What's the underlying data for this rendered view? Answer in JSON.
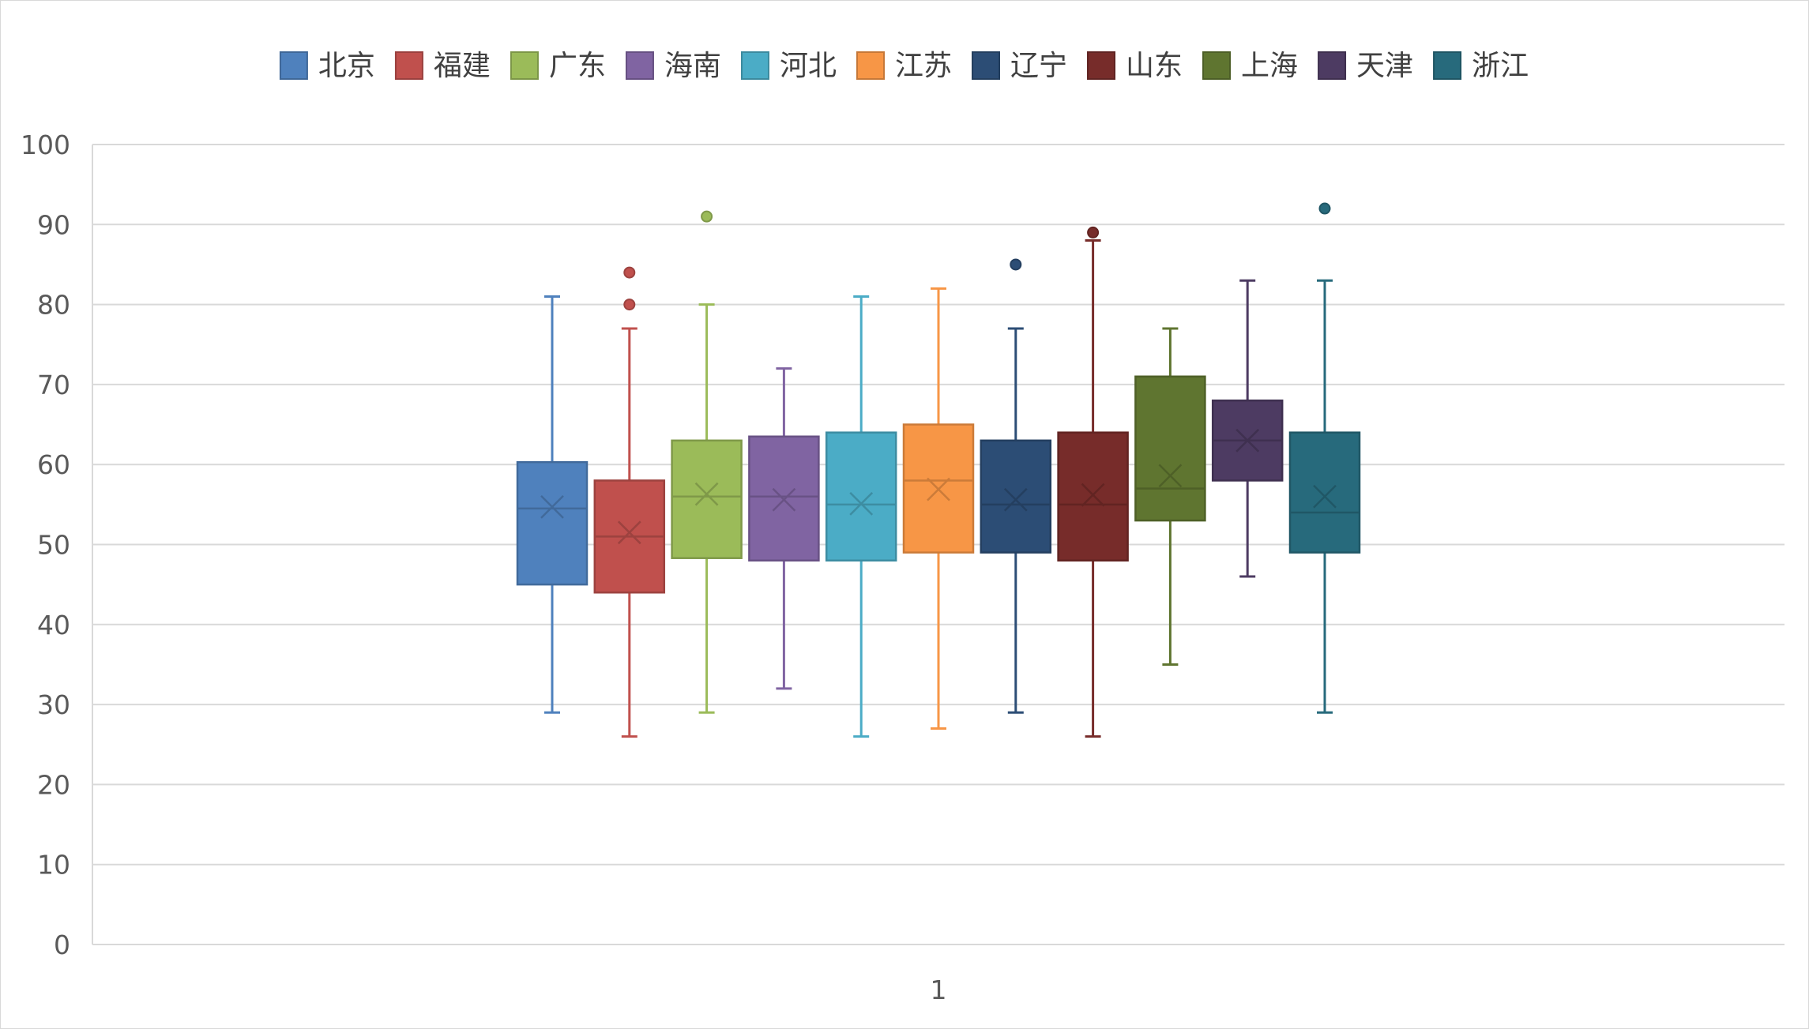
{
  "chart_data": {
    "type": "boxplot",
    "title": "",
    "xlabel": "",
    "ylabel": "",
    "category": "1",
    "ylim": [
      0,
      100
    ],
    "yticks": [
      0,
      10,
      20,
      30,
      40,
      50,
      60,
      70,
      80,
      90,
      100
    ],
    "grid": true,
    "legend_position": "top",
    "series": [
      {
        "name": "北京",
        "color": "#4f81bd",
        "min": 29,
        "q1": 45,
        "median": 54.5,
        "q3": 60.3,
        "max": 81,
        "mean": 54.7,
        "outliers": []
      },
      {
        "name": "福建",
        "color": "#c0504d",
        "min": 26,
        "q1": 44,
        "median": 51,
        "q3": 58,
        "max": 77,
        "mean": 51.5,
        "outliers": [
          80,
          84
        ]
      },
      {
        "name": "广东",
        "color": "#9bbb59",
        "min": 29,
        "q1": 48.3,
        "median": 56,
        "q3": 63,
        "max": 80,
        "mean": 56.3,
        "outliers": [
          91
        ]
      },
      {
        "name": "海南",
        "color": "#8064a2",
        "min": 32,
        "q1": 48,
        "median": 56,
        "q3": 63.5,
        "max": 72,
        "mean": 55.6,
        "outliers": []
      },
      {
        "name": "河北",
        "color": "#4bacc6",
        "min": 26,
        "q1": 48,
        "median": 55,
        "q3": 64,
        "max": 81,
        "mean": 55.1,
        "outliers": []
      },
      {
        "name": "江苏",
        "color": "#f79646",
        "min": 27,
        "q1": 49,
        "median": 58,
        "q3": 65,
        "max": 82,
        "mean": 56.9,
        "outliers": []
      },
      {
        "name": "辽宁",
        "color": "#2c4d75",
        "min": 29,
        "q1": 49,
        "median": 55,
        "q3": 63,
        "max": 77,
        "mean": 55.6,
        "outliers": [
          85
        ]
      },
      {
        "name": "山东",
        "color": "#772c2a",
        "min": 26,
        "q1": 48,
        "median": 55,
        "q3": 64,
        "max": 88,
        "mean": 56.2,
        "outliers": [
          89
        ]
      },
      {
        "name": "上海",
        "color": "#5f7530",
        "min": 35,
        "q1": 53,
        "median": 57,
        "q3": 71,
        "max": 77,
        "mean": 58.6,
        "outliers": []
      },
      {
        "name": "天津",
        "color": "#4d3b62",
        "min": 46,
        "q1": 58,
        "median": 63,
        "q3": 68,
        "max": 83,
        "mean": 63,
        "outliers": []
      },
      {
        "name": "浙江",
        "color": "#276a7c",
        "min": 29,
        "q1": 49,
        "median": 54,
        "q3": 64,
        "max": 83,
        "mean": 56,
        "outliers": [
          92
        ]
      }
    ]
  }
}
